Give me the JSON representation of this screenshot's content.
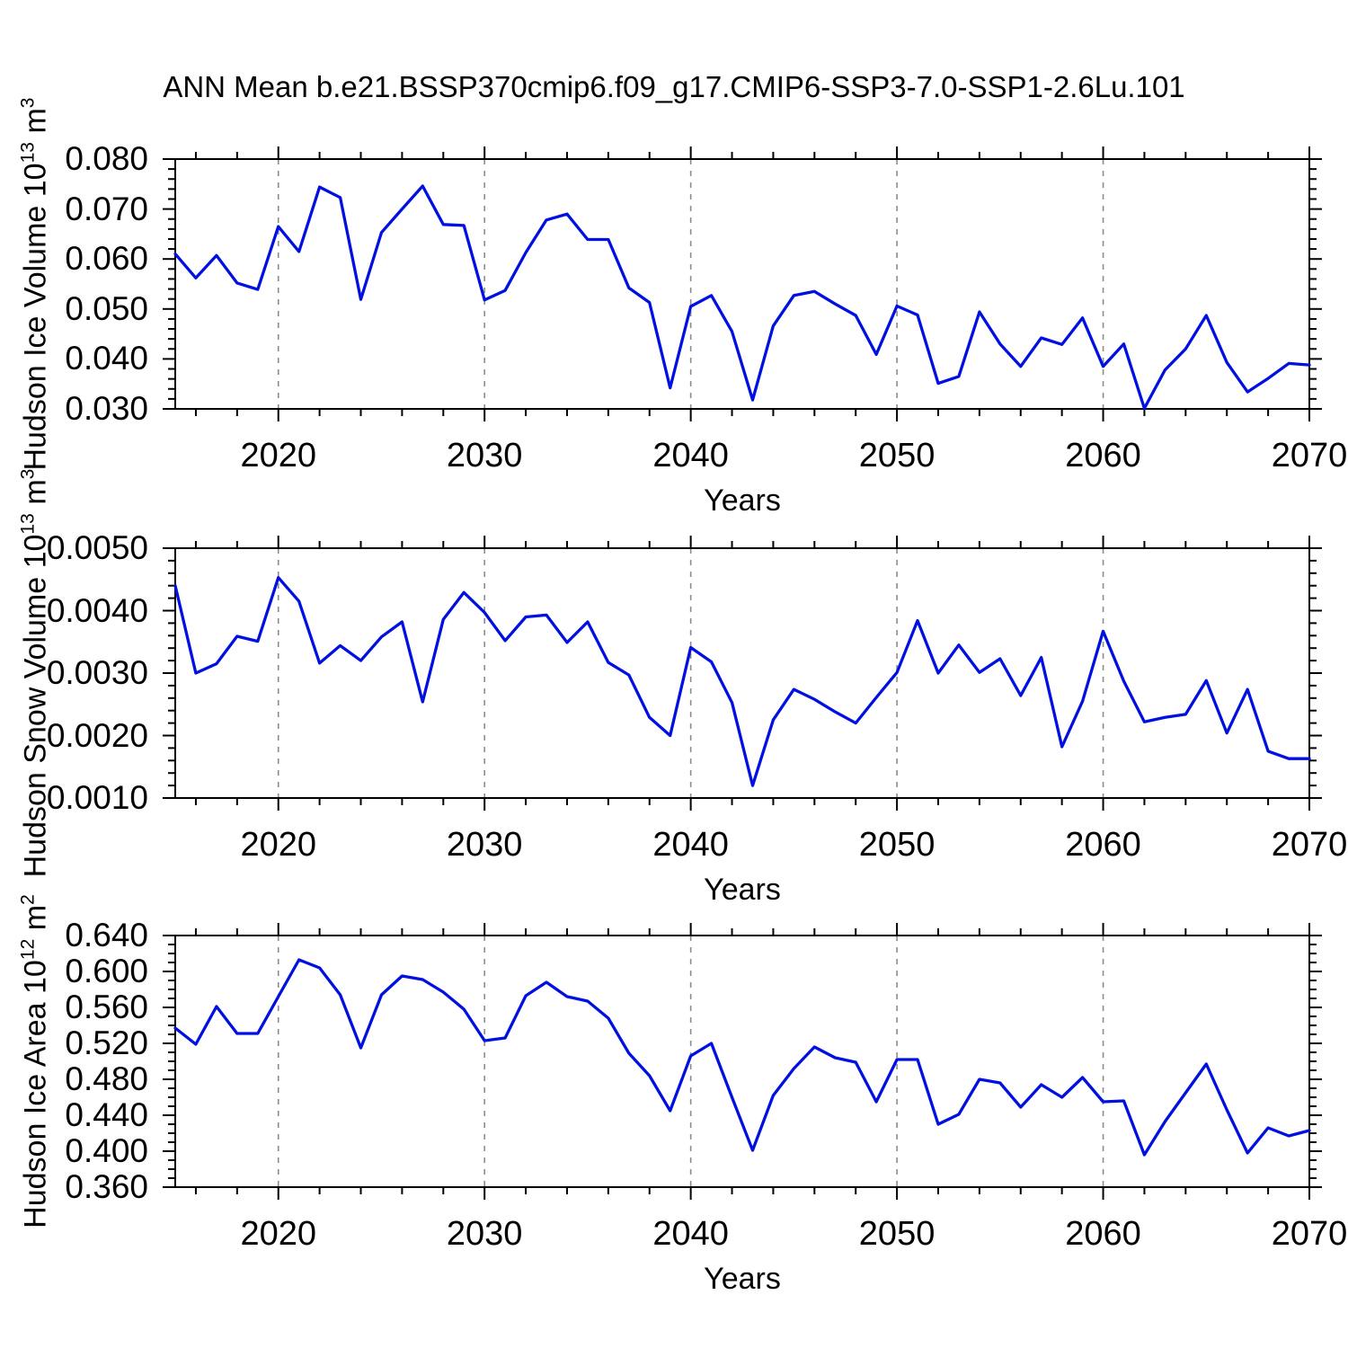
{
  "title": "ANN Mean b.e21.BSSP370cmip6.f09_g17.CMIP6-SSP3-7.0-SSP1-2.6Lu.101",
  "colors": {
    "background": "#ffffff",
    "line": "#0010e0",
    "axis": "#000000",
    "grid": "#8c8c8c",
    "text": "#000000"
  },
  "x_axis": {
    "label": "Years",
    "range": [
      2015,
      2070
    ],
    "major_tick_labels": [
      "2020",
      "2030",
      "2040",
      "2050",
      "2060",
      "2070"
    ],
    "major_ticks": [
      2020,
      2030,
      2040,
      2050,
      2060,
      2070
    ],
    "minor_step": 2,
    "gridlines": [
      2020,
      2030,
      2040,
      2050,
      2060
    ],
    "years": [
      2015,
      2016,
      2017,
      2018,
      2019,
      2020,
      2021,
      2022,
      2023,
      2024,
      2025,
      2026,
      2027,
      2028,
      2029,
      2030,
      2031,
      2032,
      2033,
      2034,
      2035,
      2036,
      2037,
      2038,
      2039,
      2040,
      2041,
      2042,
      2043,
      2044,
      2045,
      2046,
      2047,
      2048,
      2049,
      2050,
      2051,
      2052,
      2053,
      2054,
      2055,
      2056,
      2057,
      2058,
      2059,
      2060,
      2061,
      2062,
      2063,
      2064,
      2065,
      2066,
      2067,
      2068,
      2069,
      2070
    ]
  },
  "chart_data": [
    {
      "type": "line",
      "name": "hudson-ice-volume",
      "ylabel_text": "Hudson Ice Volume 10^13 m^3",
      "ylabel_parts": [
        {
          "text": "Hudson Ice Volume 10",
          "sup": false
        },
        {
          "text": "13",
          "sup": true
        },
        {
          "text": " m",
          "sup": false
        },
        {
          "text": "3",
          "sup": true
        }
      ],
      "ylim": [
        0.03,
        0.08
      ],
      "ytick_labels": [
        "0.080",
        "0.070",
        "0.060",
        "0.050",
        "0.040",
        "0.030"
      ],
      "yminor_step": 0.002,
      "xlabel": "Years",
      "values": [
        0.061,
        0.0562,
        0.0607,
        0.0552,
        0.0539,
        0.0665,
        0.0615,
        0.0744,
        0.0723,
        0.0519,
        0.0653,
        0.07,
        0.0746,
        0.0669,
        0.0667,
        0.0518,
        0.0537,
        0.0613,
        0.0678,
        0.069,
        0.0639,
        0.0639,
        0.0542,
        0.0513,
        0.0342,
        0.0505,
        0.0527,
        0.0455,
        0.0318,
        0.0466,
        0.0527,
        0.0535,
        0.051,
        0.0487,
        0.0409,
        0.0506,
        0.0488,
        0.0351,
        0.0365,
        0.0494,
        0.043,
        0.0385,
        0.0442,
        0.0429,
        0.0482,
        0.0385,
        0.043,
        0.0301,
        0.0378,
        0.042,
        0.0487,
        0.0393,
        0.0334,
        0.0361,
        0.0391,
        0.0388
      ]
    },
    {
      "type": "line",
      "name": "hudson-snow-volume",
      "ylabel_text": "Hudson Snow Volume 10^13 m^3",
      "ylabel_parts": [
        {
          "text": "Hudson Snow Volume 10",
          "sup": false
        },
        {
          "text": "13",
          "sup": true
        },
        {
          "text": " m",
          "sup": false
        },
        {
          "text": "3",
          "sup": true
        }
      ],
      "ylim": [
        0.001,
        0.005
      ],
      "ytick_labels": [
        "0.0050",
        "0.0040",
        "0.0030",
        "0.0020",
        "0.0010"
      ],
      "yminor_step": 0.0002,
      "xlabel": "Years",
      "values": [
        0.0044,
        0.003,
        0.00315,
        0.00359,
        0.00351,
        0.00453,
        0.00415,
        0.00316,
        0.00344,
        0.0032,
        0.00358,
        0.00382,
        0.00254,
        0.00386,
        0.00429,
        0.00397,
        0.00352,
        0.0039,
        0.00393,
        0.00349,
        0.00382,
        0.00317,
        0.00297,
        0.00229,
        0.002,
        0.00341,
        0.00318,
        0.00253,
        0.0012,
        0.00225,
        0.00274,
        0.00258,
        0.00238,
        0.0022,
        0.00261,
        0.00301,
        0.00384,
        0.003,
        0.00345,
        0.00301,
        0.00323,
        0.00264,
        0.00325,
        0.00182,
        0.00255,
        0.00367,
        0.00287,
        0.00222,
        0.00229,
        0.00234,
        0.00288,
        0.00204,
        0.00274,
        0.00175,
        0.00163,
        0.00163
      ]
    },
    {
      "type": "line",
      "name": "hudson-ice-area",
      "ylabel_text": "Hudson Ice Area 10^12 m^2",
      "ylabel_parts": [
        {
          "text": "Hudson Ice Area 10",
          "sup": false
        },
        {
          "text": "12",
          "sup": true
        },
        {
          "text": " m",
          "sup": false
        },
        {
          "text": "2",
          "sup": true
        }
      ],
      "ylim": [
        0.36,
        0.64
      ],
      "ytick_labels": [
        "0.640",
        "0.600",
        "0.560",
        "0.520",
        "0.480",
        "0.440",
        "0.400",
        "0.360"
      ],
      "yminor_step": 0.01,
      "xlabel": "Years",
      "values": [
        0.537,
        0.519,
        0.561,
        0.531,
        0.531,
        0.572,
        0.613,
        0.604,
        0.574,
        0.515,
        0.574,
        0.595,
        0.591,
        0.577,
        0.558,
        0.523,
        0.526,
        0.573,
        0.588,
        0.572,
        0.567,
        0.548,
        0.509,
        0.484,
        0.445,
        0.506,
        0.52,
        0.46,
        0.401,
        0.462,
        0.492,
        0.516,
        0.504,
        0.499,
        0.455,
        0.502,
        0.502,
        0.43,
        0.441,
        0.48,
        0.476,
        0.449,
        0.474,
        0.46,
        0.482,
        0.455,
        0.456,
        0.396,
        0.433,
        0.465,
        0.497,
        0.446,
        0.398,
        0.426,
        0.417,
        0.423
      ]
    }
  ]
}
